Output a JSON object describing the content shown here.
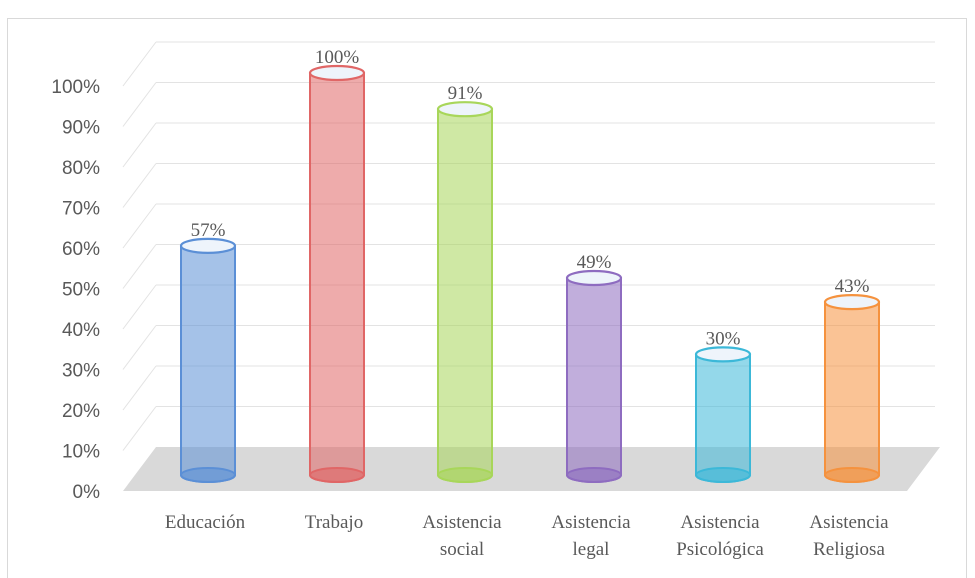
{
  "chart_data": {
    "type": "bar",
    "style": "3d-cylinder",
    "categories": [
      [
        "Educación"
      ],
      [
        "Trabajo"
      ],
      [
        "Asistencia",
        "social"
      ],
      [
        "Asistencia",
        "legal"
      ],
      [
        "Asistencia",
        "Psicológica"
      ],
      [
        "Asistencia",
        "Religiosa"
      ]
    ],
    "values": [
      57,
      100,
      91,
      49,
      30,
      43
    ],
    "data_labels": [
      "57%",
      "100%",
      "91%",
      "49%",
      "30%",
      "43%"
    ],
    "colors": [
      "#5b8fd6",
      "#e06666",
      "#a8d65a",
      "#8e6cc0",
      "#3cb8d8",
      "#f5923e"
    ],
    "ylim": [
      0,
      100
    ],
    "yticks": [
      "0%",
      "10%",
      "20%",
      "30%",
      "40%",
      "50%",
      "60%",
      "70%",
      "80%",
      "90%",
      "100%"
    ],
    "grid": true,
    "legend": "none",
    "title": "",
    "xlabel": "",
    "ylabel": ""
  }
}
